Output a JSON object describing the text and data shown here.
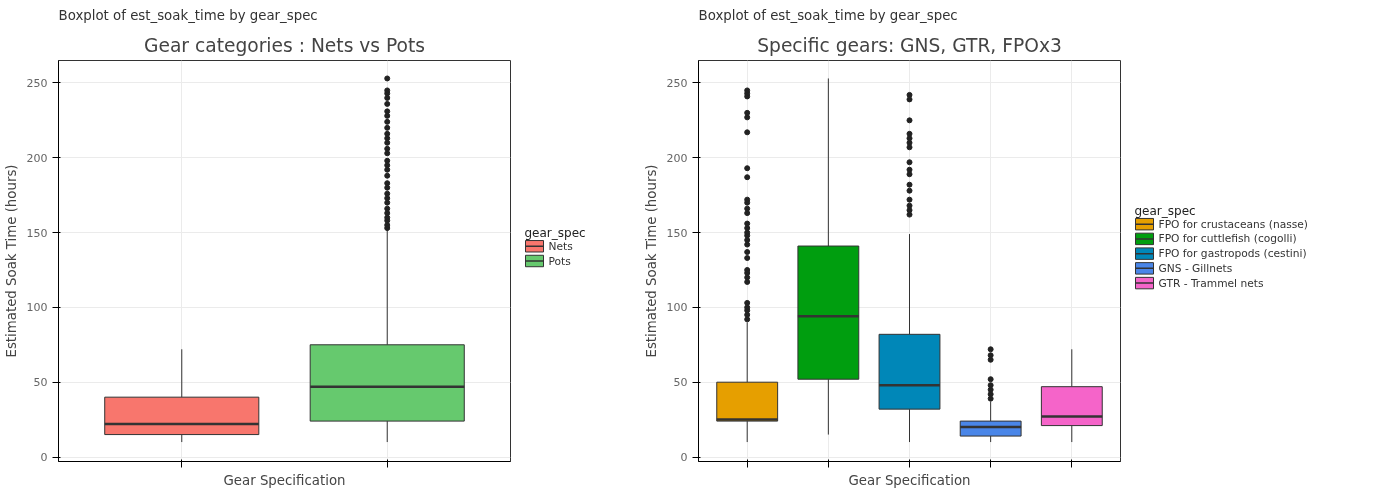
{
  "chart_data": [
    {
      "type": "box",
      "title": "Gear categories : Nets vs Pots",
      "subtitle": "Boxplot of est_soak_time by gear_spec",
      "xlabel": "Gear Specification",
      "ylabel": "Estimated Soak Time (hours)",
      "legend_title": "gear_spec",
      "categories": [
        null,
        null
      ],
      "ylim": [
        -3,
        265
      ],
      "yticks": [
        0,
        50,
        100,
        150,
        200,
        250
      ],
      "grid": true,
      "legend": "right",
      "tick_labels": "y",
      "series": [
        {
          "name": "Nets",
          "color": "#f8766d",
          "boxes": [
            {
              "low": 10,
              "q1": 15,
              "median": 22,
              "q3": 40,
              "high": 72
            },
            null
          ]
        },
        {
          "name": "Pots",
          "color": "#66c96e",
          "boxes": [
            null,
            {
              "low": 10,
              "q1": 24,
              "median": 47,
              "q3": 75,
              "high": 152,
              "outliers": [
                153,
                155,
                158,
                160,
                163,
                166,
                170,
                173,
                176,
                180,
                183,
                188,
                192,
                195,
                198,
                203,
                206,
                210,
                213,
                216,
                220,
                224,
                228,
                231,
                236,
                240,
                243,
                245,
                253
              ]
            }
          ]
        }
      ]
    },
    {
      "type": "box",
      "title": "Specific gears: GNS, GTR, FPOx3",
      "subtitle": "Boxplot of est_soak_time by gear_spec",
      "xlabel": "Gear Specification",
      "ylabel": "Estimated Soak Time (hours)",
      "legend_title": "gear_spec",
      "categories": [
        null,
        null,
        null,
        null,
        null
      ],
      "ylim": [
        -3,
        265
      ],
      "yticks": [
        0,
        50,
        100,
        150,
        200,
        250
      ],
      "grid": true,
      "legend": "right",
      "tick_labels": "y",
      "series": [
        {
          "name": "FPO for crustaceans (nasse)",
          "color": "#e69f00",
          "boxes": [
            {
              "low": 10,
              "q1": 24,
              "median": 25,
              "q3": 50,
              "high": 90,
              "outliers": [
                92,
                95,
                98,
                100,
                103,
                117,
                120,
                123,
                125,
                133,
                137,
                142,
                145,
                148,
                150,
                153,
                156,
                163,
                166,
                170,
                172,
                187,
                193,
                217,
                227,
                230,
                241,
                243,
                245
              ]
            },
            null,
            null,
            null,
            null
          ]
        },
        {
          "name": "FPO for cuttlefish (cogolli)",
          "color": "#009e0f",
          "boxes": [
            null,
            {
              "low": 15,
              "q1": 52,
              "median": 94,
              "q3": 141,
              "high": 253
            },
            null,
            null,
            null
          ]
        },
        {
          "name": "FPO for gastropods (cestini)",
          "color": "#0087b8",
          "boxes": [
            null,
            null,
            {
              "low": 10,
              "q1": 32,
              "median": 48,
              "q3": 82,
              "high": 149,
              "outliers": [
                162,
                165,
                168,
                172,
                178,
                182,
                189,
                192,
                197,
                207,
                210,
                213,
                216,
                225,
                239,
                242
              ]
            },
            null,
            null
          ]
        },
        {
          "name": "GNS - Gillnets",
          "color": "#4a86e8",
          "boxes": [
            null,
            null,
            null,
            {
              "low": 10,
              "q1": 14,
              "median": 20,
              "q3": 24,
              "high": 37,
              "outliers": [
                39,
                42,
                45,
                48,
                52,
                65,
                68,
                72
              ]
            },
            null
          ]
        },
        {
          "name": "GTR - Trammel nets",
          "color": "#f564c9",
          "boxes": [
            null,
            null,
            null,
            null,
            {
              "low": 10,
              "q1": 21,
              "median": 27,
              "q3": 47,
              "high": 72
            }
          ]
        }
      ]
    }
  ]
}
